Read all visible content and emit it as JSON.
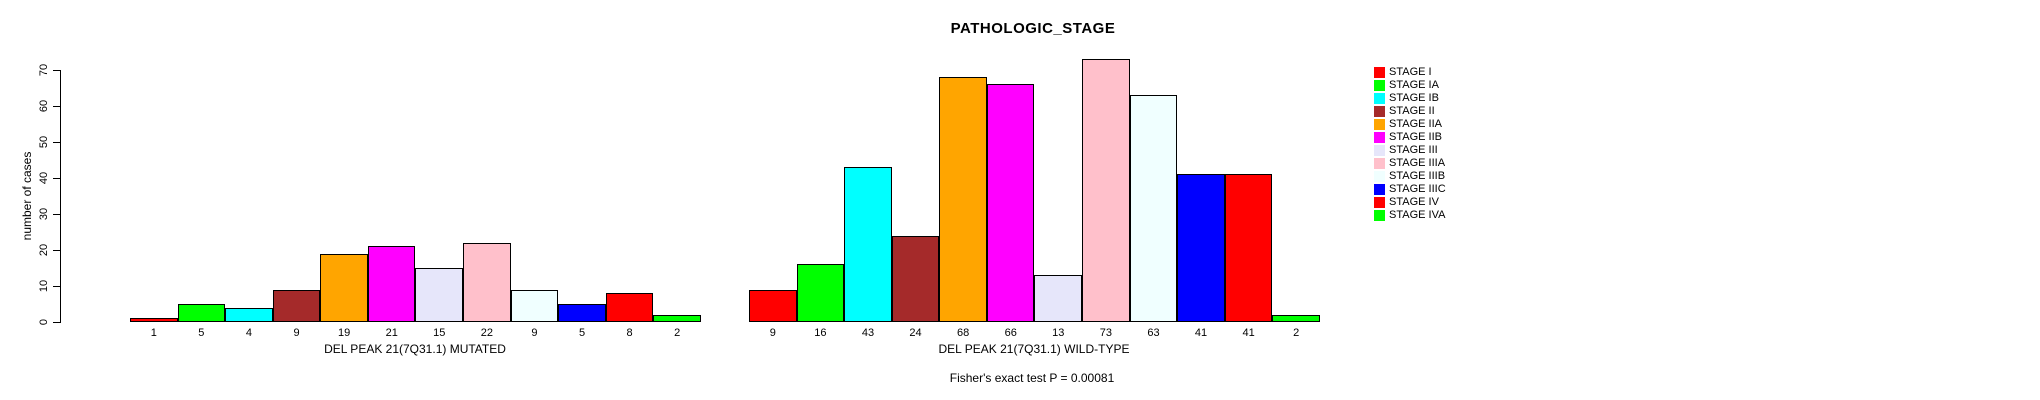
{
  "title": "PATHOLOGIC_STAGE",
  "caption": "Fisher's exact test P = 0.00081",
  "chart_data": {
    "type": "bar",
    "title": "PATHOLOGIC_STAGE",
    "ylabel": "number of cases",
    "ylim": [
      0,
      70
    ],
    "yticks": [
      0,
      10,
      20,
      30,
      40,
      50,
      60,
      70
    ],
    "grid": false,
    "legend_position": "right",
    "bar_border_color": "#000000",
    "categories": [
      "STAGE I",
      "STAGE IA",
      "STAGE IB",
      "STAGE II",
      "STAGE IIA",
      "STAGE IIB",
      "STAGE III",
      "STAGE IIIA",
      "STAGE IIIB",
      "STAGE IIIC",
      "STAGE IV",
      "STAGE IVA"
    ],
    "colors": [
      "#FF0000",
      "#00FF00",
      "#00FFFF",
      "#A52A2A",
      "#FFA500",
      "#FF00FF",
      "#E6E6FA",
      "#FFC0CB",
      "#F0FFFF",
      "#0000FF",
      "#FF0000",
      "#00FF00"
    ],
    "series": [
      {
        "name": "DEL PEAK 21(7Q31.1) MUTATED",
        "values": [
          1,
          5,
          4,
          9,
          19,
          21,
          15,
          22,
          9,
          5,
          8,
          2
        ]
      },
      {
        "name": "DEL PEAK 21(7Q31.1) WILD-TYPE",
        "values": [
          9,
          16,
          43,
          24,
          68,
          66,
          13,
          73,
          63,
          41,
          41,
          2
        ]
      }
    ],
    "annotation": "Fisher's exact test P = 0.00081"
  }
}
